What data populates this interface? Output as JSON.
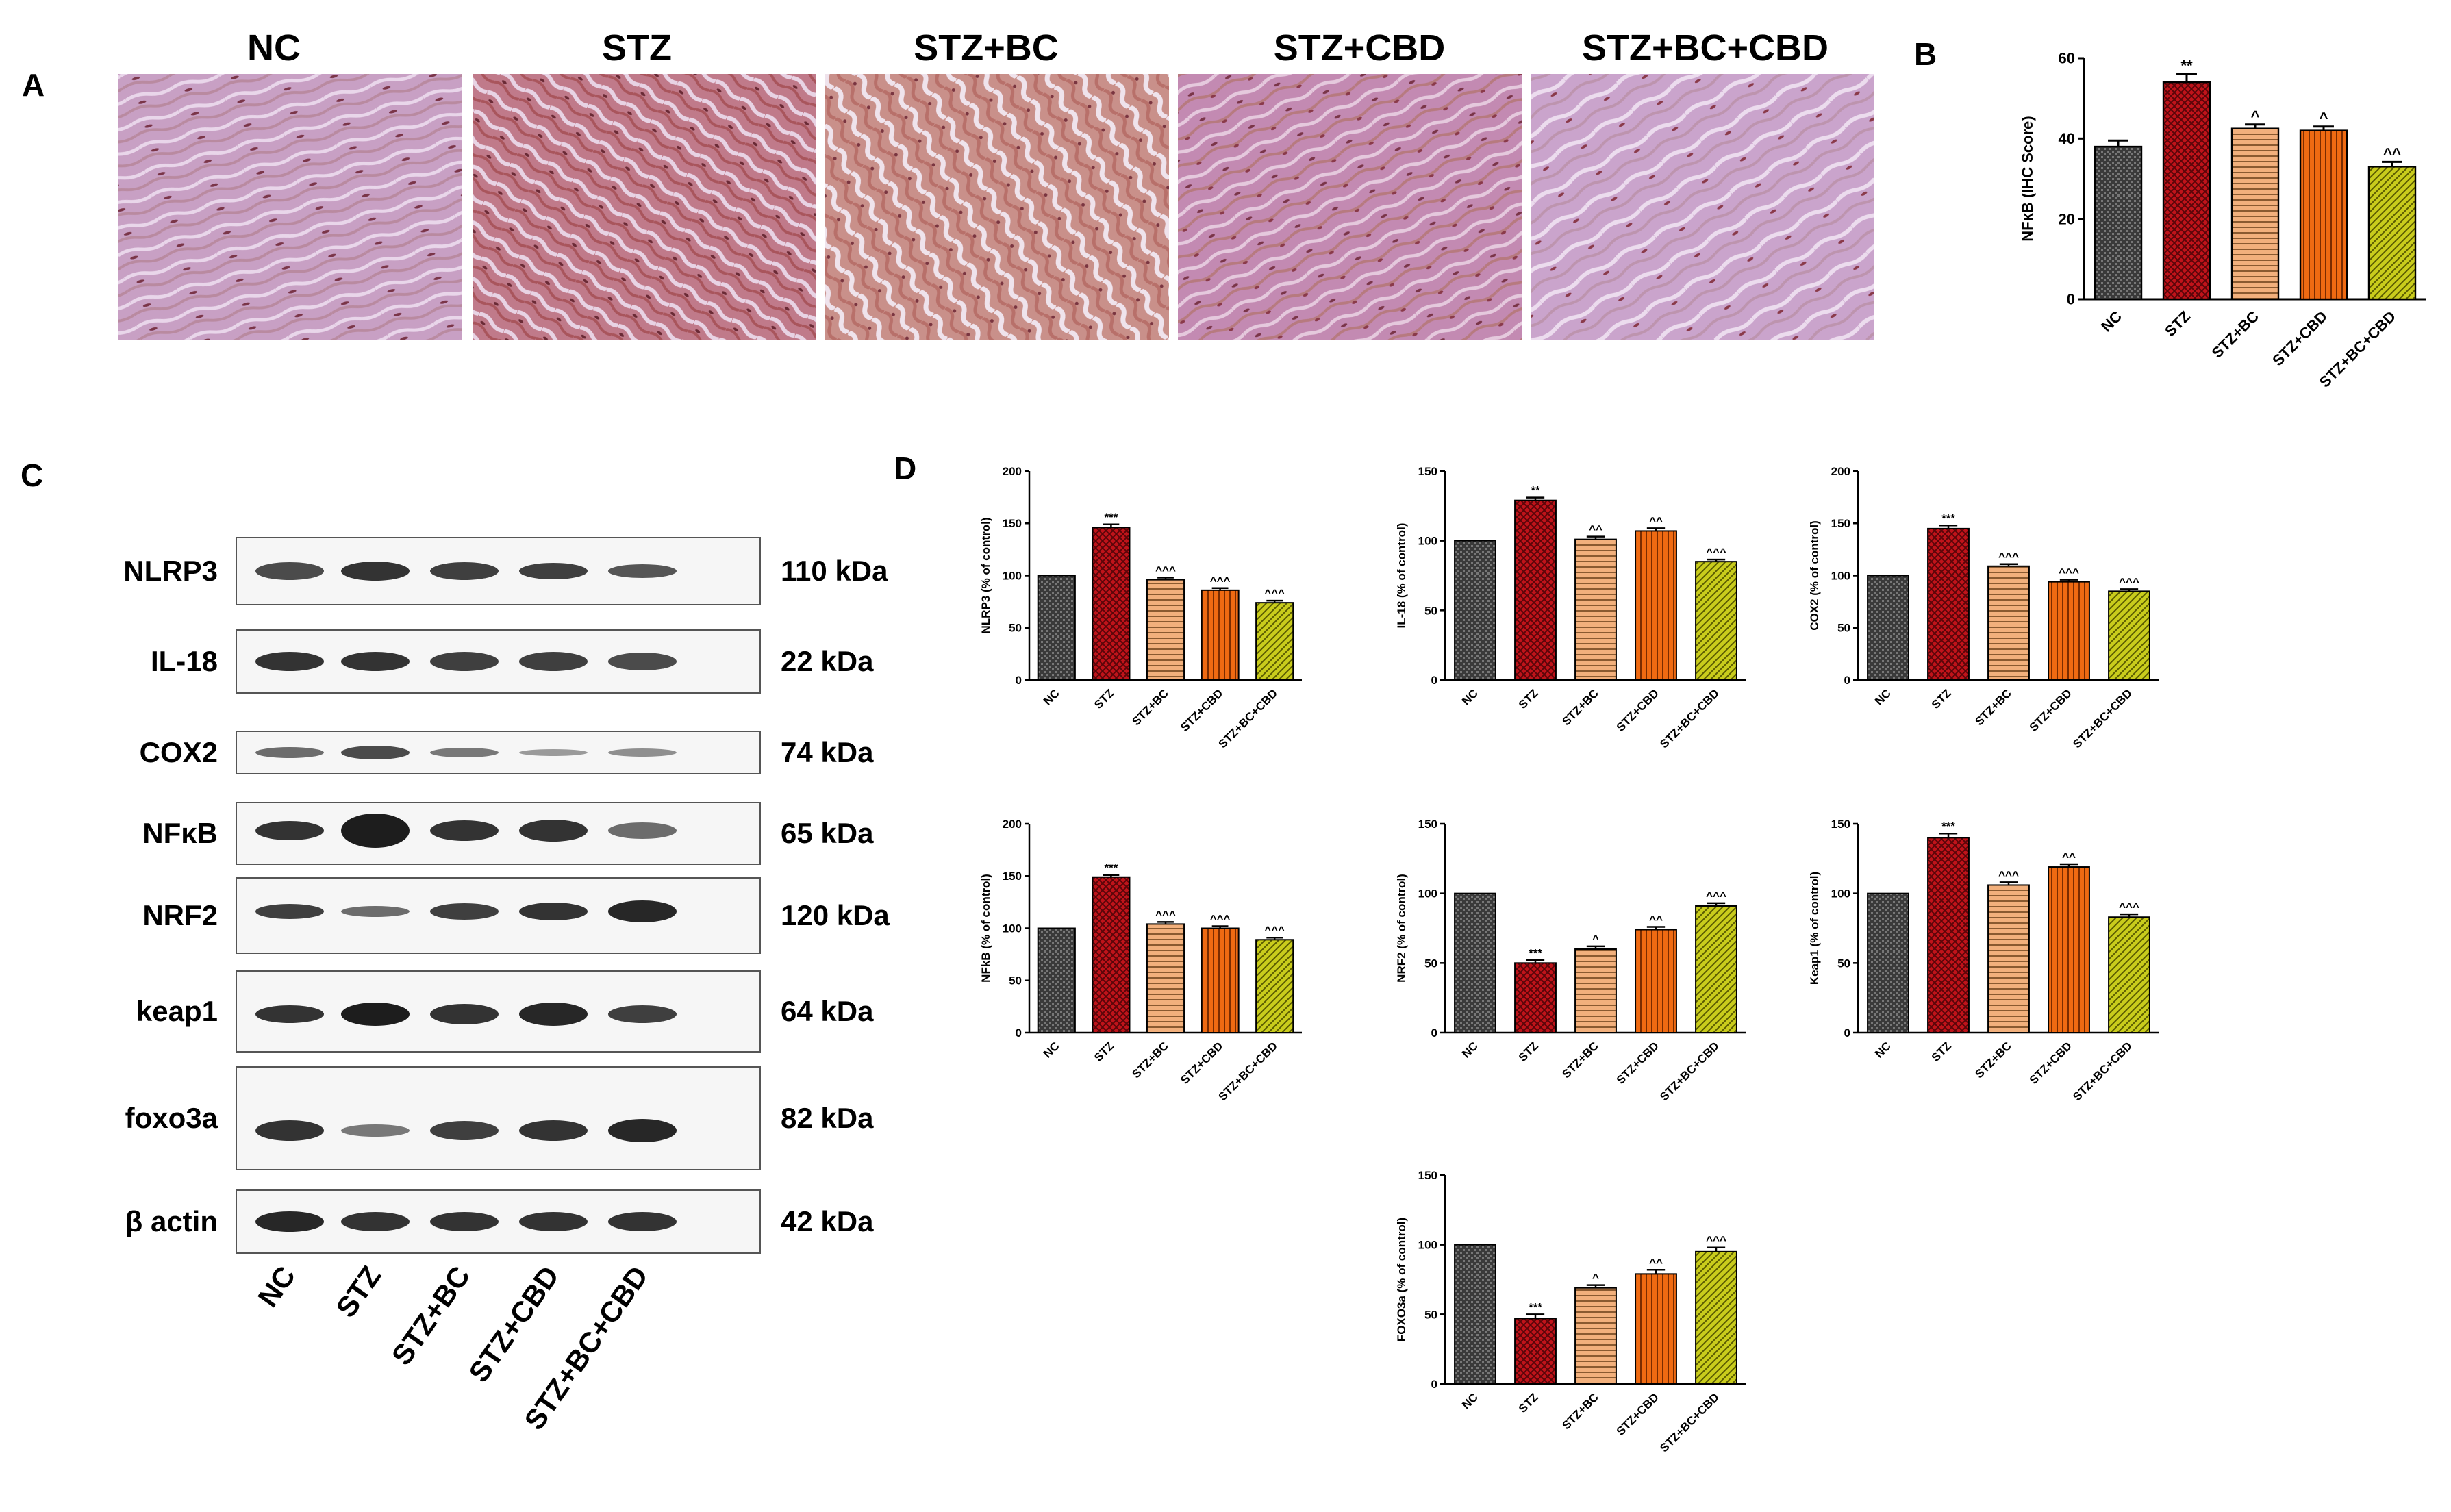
{
  "panel_labels": {
    "A": "A",
    "B": "B",
    "C": "C",
    "D": "D"
  },
  "histology": {
    "headers": [
      "NC",
      "STZ",
      "STZ+BC",
      "STZ+CBD",
      "STZ+BC+CBD"
    ]
  },
  "western": {
    "proteins": [
      "NLRP3",
      "IL-18",
      "COX2",
      "NFκB",
      "NRF2",
      "keap1",
      "foxo3a",
      "β actin"
    ],
    "sizes": [
      "110 kDa",
      "22 kDa",
      "74 kDa",
      "65 kDa",
      "120 kDa",
      "64 kDa",
      "82 kDa",
      "42 kDa"
    ],
    "lanes": [
      "NC",
      "STZ",
      "STZ+BC",
      "STZ+CBD",
      "STZ+BC+CBD"
    ]
  },
  "colors": {
    "NC": "#3a3a3a",
    "STZ": "#c0131a",
    "STZ+BC": "#f2b07c",
    "STZ+CBD": "#ef6a12",
    "STZ+BC+CBD": "#c9cc1c"
  },
  "chart_data": [
    {
      "id": "B",
      "type": "bar",
      "categories": [
        "NC",
        "STZ",
        "STZ+BC",
        "STZ+CBD",
        "STZ+BC+CBD"
      ],
      "values": [
        38,
        54,
        42.5,
        42,
        33
      ],
      "errors": [
        1.5,
        2,
        1,
        1,
        1.2
      ],
      "annotations": [
        "",
        "**",
        "^",
        "^",
        "^^"
      ],
      "ylabel": "NFκB (IHC Score)",
      "ylim": [
        0,
        60
      ],
      "yticks": [
        "0",
        "20",
        "40",
        "60"
      ]
    },
    {
      "id": "NLRP3",
      "type": "bar",
      "categories": [
        "NC",
        "STZ",
        "STZ+BC",
        "STZ+CBD",
        "STZ+BC+CBD"
      ],
      "values": [
        100,
        146,
        96,
        86,
        74
      ],
      "errors": [
        0,
        3,
        2,
        2,
        2
      ],
      "annotations": [
        "",
        "***",
        "^^^",
        "^^^",
        "^^^"
      ],
      "ylabel": "NLRP3 (% of control)",
      "ylim": [
        0,
        200
      ],
      "yticks": [
        "0",
        "50",
        "100",
        "150",
        "200"
      ]
    },
    {
      "id": "IL-18",
      "type": "bar",
      "categories": [
        "NC",
        "STZ",
        "STZ+BC",
        "STZ+CBD",
        "STZ+BC+CBD"
      ],
      "values": [
        100,
        129,
        101,
        107,
        85
      ],
      "errors": [
        0,
        2,
        2,
        2,
        1.5
      ],
      "annotations": [
        "",
        "**",
        "^^",
        "^^",
        "^^^"
      ],
      "ylabel": "IL-18 (% of control)",
      "ylim": [
        0,
        150
      ],
      "yticks": [
        "0",
        "50",
        "100",
        "150"
      ]
    },
    {
      "id": "COX2",
      "type": "bar",
      "categories": [
        "NC",
        "STZ",
        "STZ+BC",
        "STZ+CBD",
        "STZ+BC+CBD"
      ],
      "values": [
        100,
        145,
        109,
        94,
        85
      ],
      "errors": [
        0,
        3,
        2,
        2,
        2
      ],
      "annotations": [
        "",
        "***",
        "^^^",
        "^^^",
        "^^^"
      ],
      "ylabel": "COX2 (% of control)",
      "ylim": [
        0,
        200
      ],
      "yticks": [
        "0",
        "50",
        "100",
        "150",
        "200"
      ]
    },
    {
      "id": "NFkB",
      "type": "bar",
      "categories": [
        "NC",
        "STZ",
        "STZ+BC",
        "STZ+CBD",
        "STZ+BC+CBD"
      ],
      "values": [
        100,
        149,
        104,
        100,
        89
      ],
      "errors": [
        0,
        2,
        2,
        2,
        2
      ],
      "annotations": [
        "",
        "***",
        "^^^",
        "^^^",
        "^^^"
      ],
      "ylabel": "NFkB (% of control)",
      "ylim": [
        0,
        200
      ],
      "yticks": [
        "0",
        "50",
        "100",
        "150",
        "200"
      ]
    },
    {
      "id": "NRF2",
      "type": "bar",
      "categories": [
        "NC",
        "STZ",
        "STZ+BC",
        "STZ+CBD",
        "STZ+BC+CBD"
      ],
      "values": [
        100,
        50,
        60,
        74,
        91
      ],
      "errors": [
        0,
        2,
        2,
        2,
        2
      ],
      "annotations": [
        "",
        "***",
        "^",
        "^^",
        "^^^"
      ],
      "ylabel": "NRF2 (% of control)",
      "ylim": [
        0,
        150
      ],
      "yticks": [
        "0",
        "50",
        "100",
        "150"
      ]
    },
    {
      "id": "Keap1",
      "type": "bar",
      "categories": [
        "NC",
        "STZ",
        "STZ+BC",
        "STZ+CBD",
        "STZ+BC+CBD"
      ],
      "values": [
        100,
        140,
        106,
        119,
        83
      ],
      "errors": [
        0,
        3,
        2,
        2,
        2
      ],
      "annotations": [
        "",
        "***",
        "^^^",
        "^^",
        "^^^"
      ],
      "ylabel": "Keap1 (% of control)",
      "ylim": [
        0,
        150
      ],
      "yticks": [
        "0",
        "50",
        "100",
        "150"
      ]
    },
    {
      "id": "FOXO3a",
      "type": "bar",
      "categories": [
        "NC",
        "STZ",
        "STZ+BC",
        "STZ+CBD",
        "STZ+BC+CBD"
      ],
      "values": [
        100,
        47,
        69,
        79,
        95
      ],
      "errors": [
        0,
        3,
        2,
        3,
        3
      ],
      "annotations": [
        "",
        "***",
        "^",
        "^^",
        "^^^"
      ],
      "ylabel": "FOXO3a (% of control)",
      "ylim": [
        0,
        150
      ],
      "yticks": [
        "0",
        "50",
        "100",
        "150"
      ]
    }
  ]
}
